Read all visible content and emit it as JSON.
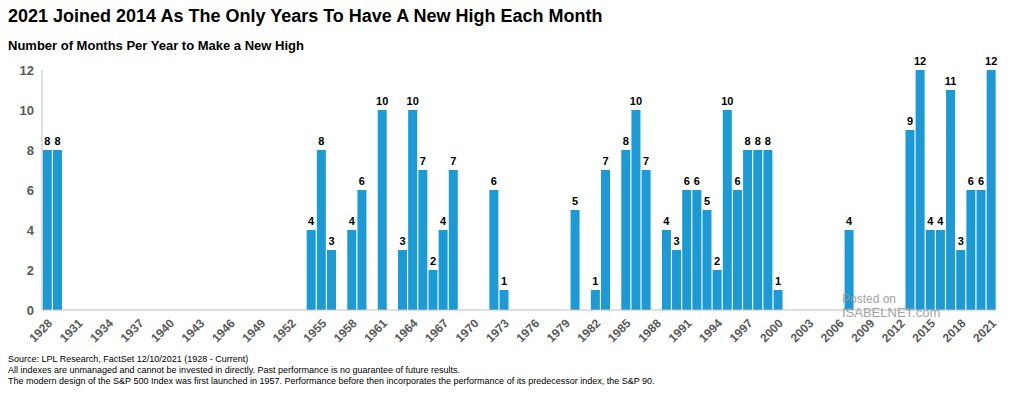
{
  "chart_data": {
    "type": "bar",
    "title": "2021 Joined 2014 As The Only Years To Have A New High Each Month",
    "subtitle": "Number of Months Per Year to Make a New High",
    "categories": [
      "1928",
      null,
      null,
      "1931",
      null,
      null,
      "1934",
      null,
      null,
      "1937",
      null,
      null,
      "1940",
      null,
      null,
      "1943",
      null,
      null,
      "1946",
      null,
      null,
      "1949",
      null,
      null,
      "1952",
      null,
      null,
      "1955",
      null,
      null,
      "1958",
      null,
      null,
      "1961",
      null,
      null,
      "1964",
      null,
      null,
      "1967",
      null,
      null,
      "1970",
      null,
      null,
      "1973",
      null,
      null,
      "1976",
      null,
      null,
      "1979",
      null,
      null,
      "1982",
      null,
      null,
      "1985",
      null,
      null,
      "1988",
      null,
      null,
      "1991",
      null,
      null,
      "1994",
      null,
      null,
      "1997",
      null,
      null,
      "2000",
      null,
      null,
      "2003",
      null,
      null,
      "2006",
      null,
      null,
      "2009",
      null,
      null,
      "2012",
      null,
      null,
      "2015",
      null,
      null,
      "2018",
      null,
      null,
      "2021"
    ],
    "values": [
      8,
      8,
      null,
      null,
      null,
      null,
      null,
      null,
      null,
      null,
      null,
      null,
      null,
      null,
      null,
      null,
      null,
      null,
      null,
      null,
      null,
      null,
      null,
      null,
      null,
      null,
      4,
      8,
      3,
      null,
      4,
      6,
      null,
      10,
      null,
      3,
      10,
      7,
      2,
      4,
      7,
      null,
      null,
      null,
      6,
      1,
      null,
      null,
      null,
      null,
      null,
      null,
      5,
      null,
      1,
      7,
      null,
      8,
      10,
      7,
      null,
      4,
      3,
      6,
      6,
      5,
      2,
      10,
      6,
      8,
      8,
      8,
      1,
      null,
      null,
      null,
      null,
      null,
      null,
      4,
      null,
      null,
      null,
      null,
      null,
      9,
      12,
      4,
      4,
      11,
      3,
      6,
      6,
      12
    ],
    "color": "#1b9ad6",
    "ylim": [
      0,
      12
    ],
    "yticks": [
      0,
      2,
      4,
      6,
      8,
      10,
      12
    ],
    "grid": false,
    "data_labels": true,
    "notes": [
      "Source: LPL Research, FactSet 12/10/2021 (1928 - Current)",
      "All indexes are unmanaged and cannot be invested in directly. Past performance is no guarantee of future results.",
      "The modern design of the S&P 500 Index was first launched in 1957. Performance before then incorporates the performance of its predecessor index, the S&P 90."
    ],
    "watermark": [
      "Posted on",
      "ISABELNET.com"
    ]
  }
}
